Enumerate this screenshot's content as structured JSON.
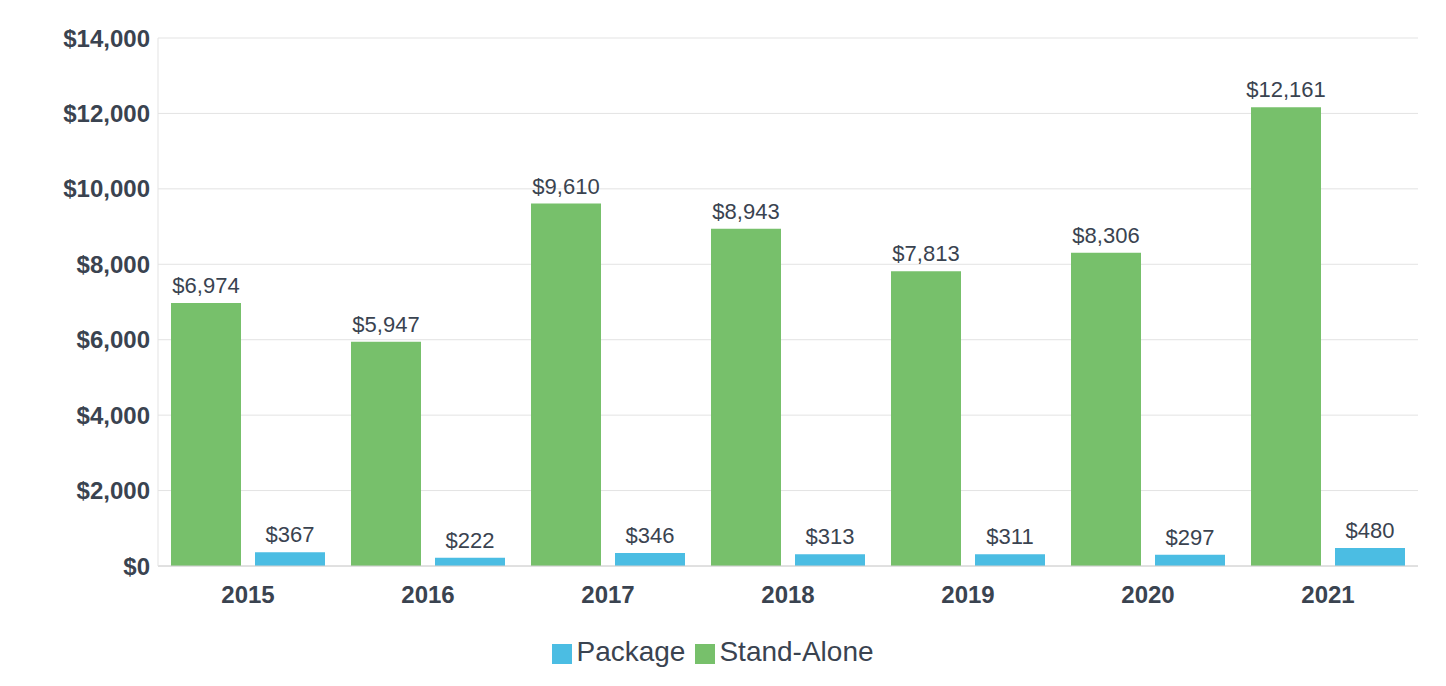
{
  "chart_data": {
    "type": "bar",
    "categories": [
      "2015",
      "2016",
      "2017",
      "2018",
      "2019",
      "2020",
      "2021"
    ],
    "series": [
      {
        "name": "Stand-Alone",
        "color": "#77c06b",
        "values": [
          6974,
          5947,
          9610,
          8943,
          7813,
          8306,
          12161
        ],
        "value_labels": [
          "$6,974",
          "$5,947",
          "$9,610",
          "$8,943",
          "$7,813",
          "$8,306",
          "$12,161"
        ]
      },
      {
        "name": "Package",
        "color": "#4bbde3",
        "values": [
          367,
          222,
          346,
          313,
          311,
          297,
          480
        ],
        "value_labels": [
          "$367",
          "$222",
          "$346",
          "$313",
          "$311",
          "$297",
          "$480"
        ]
      }
    ],
    "ylim": [
      0,
      14000
    ],
    "yticks": [
      {
        "value": 0,
        "label": "$0"
      },
      {
        "value": 2000,
        "label": "$2,000"
      },
      {
        "value": 4000,
        "label": "$4,000"
      },
      {
        "value": 6000,
        "label": "$6,000"
      },
      {
        "value": 8000,
        "label": "$8,000"
      },
      {
        "value": 10000,
        "label": "$10,000"
      },
      {
        "value": 12000,
        "label": "$12,000"
      },
      {
        "value": 14000,
        "label": "$14,000"
      }
    ],
    "grid": true,
    "legend": "bottom",
    "data_labels": true
  }
}
